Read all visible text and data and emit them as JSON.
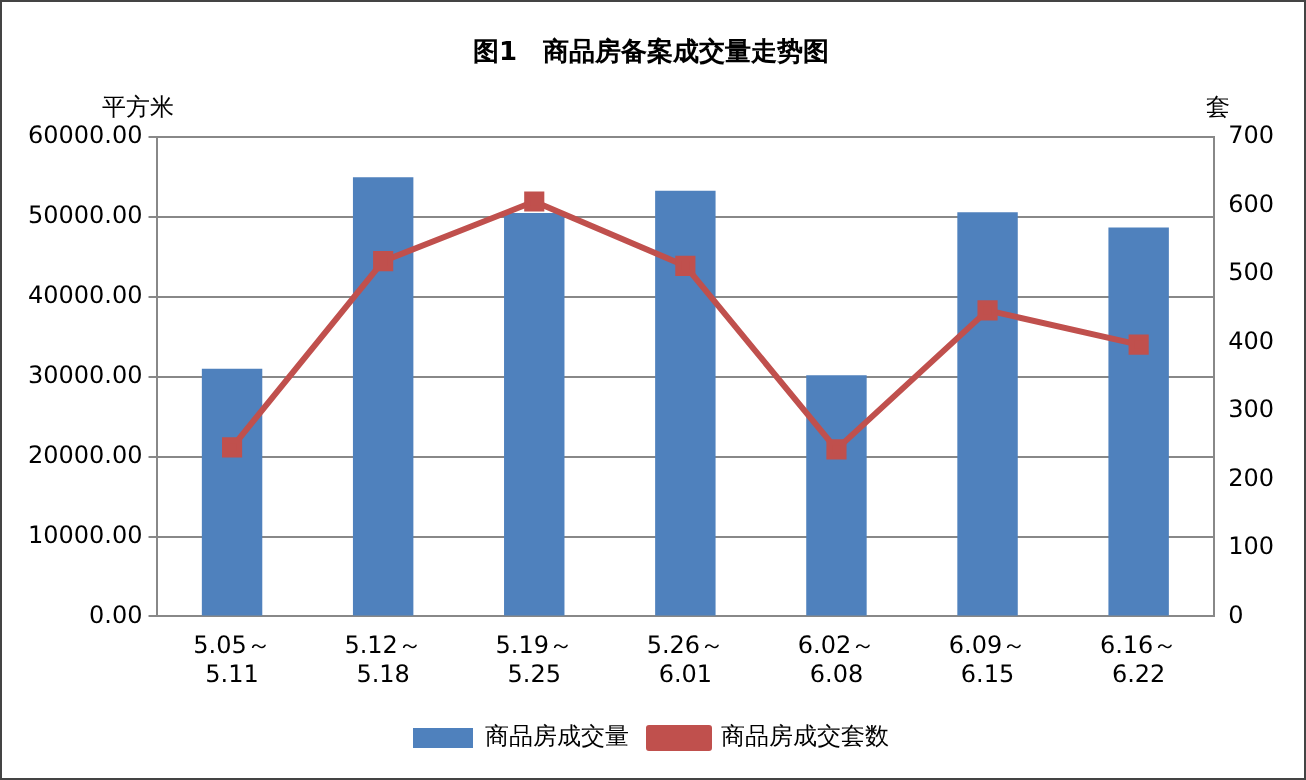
{
  "chart_data": {
    "type": "bar",
    "title": "图1　商品房备案成交量走势图",
    "ylabel": "平方米",
    "y2label": "套",
    "categories": [
      "5.05～5.11",
      "5.12～5.18",
      "5.19～5.25",
      "5.26～6.01",
      "6.02～6.08",
      "6.09～6.15",
      "6.16～6.22"
    ],
    "series": [
      {
        "name": "商品房成交量",
        "color": "#4f81bd",
        "values": [
          31000,
          55000,
          50500,
          53300,
          30200,
          50600,
          48700
        ]
      },
      {
        "name": "商品房成交套数",
        "type": "line",
        "axis": "y2",
        "color": "#c0504d",
        "marker": "square",
        "values": [
          247,
          519,
          606,
          512,
          244,
          447,
          397
        ]
      }
    ],
    "ylim": [
      0,
      60000
    ],
    "yticks": [
      {
        "value": 0,
        "label": "0.00"
      },
      {
        "value": 10000,
        "label": "10000.00"
      },
      {
        "value": 20000,
        "label": "20000.00"
      },
      {
        "value": 30000,
        "label": "30000.00"
      },
      {
        "value": 40000,
        "label": "40000.00"
      },
      {
        "value": 50000,
        "label": "50000.00"
      },
      {
        "value": 60000,
        "label": "60000.00"
      }
    ],
    "y2lim": [
      0,
      700
    ],
    "y2ticks": [
      0,
      100,
      200,
      300,
      400,
      500,
      600,
      700
    ],
    "grid": "y",
    "legend": "bottom"
  }
}
